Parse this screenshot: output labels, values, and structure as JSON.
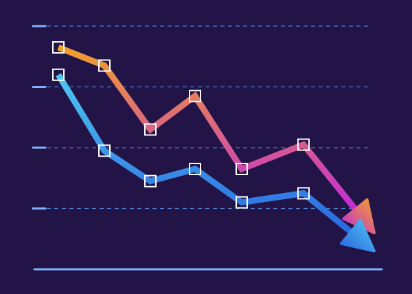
{
  "colors": {
    "background": "#221446",
    "grid": "#4d7fd1",
    "tick": "#7fb3ff",
    "axis": "#7fb3ff",
    "marker_stroke": "#ffffff",
    "series_orange": {
      "start": "#f2a02e",
      "end": "#c22ad8"
    },
    "series_blue": {
      "start": "#4fc6f0",
      "end": "#2a66e0"
    }
  },
  "chart_data": {
    "type": "line",
    "title": "",
    "xlabel": "",
    "ylabel": "",
    "grid": true,
    "ylim": [
      0,
      4
    ],
    "x": [
      1,
      2,
      3,
      4,
      5,
      6,
      7
    ],
    "series": [
      {
        "color_key": "series_orange",
        "values": [
          3.65,
          3.35,
          2.3,
          2.85,
          1.65,
          2.05,
          0.6
        ],
        "trend": "down",
        "end_marker": "arrow"
      },
      {
        "color_key": "series_blue",
        "values": [
          3.2,
          1.95,
          1.45,
          1.65,
          1.1,
          1.25,
          0.3
        ],
        "trend": "down",
        "end_marker": "arrow"
      }
    ],
    "point_markers": "hollow-square",
    "gridline_values": [
      1,
      2,
      3,
      4
    ]
  }
}
